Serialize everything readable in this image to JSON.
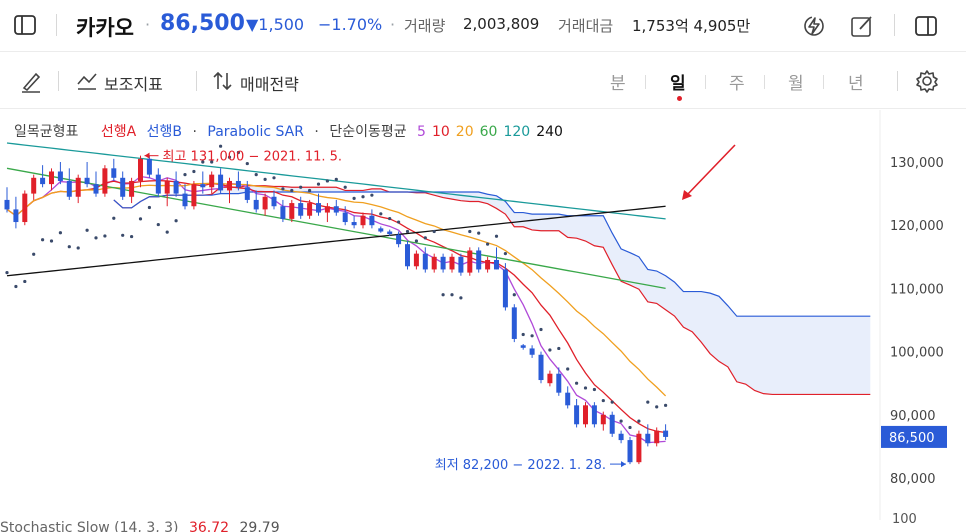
{
  "header": {
    "stock_name": "카카오",
    "sep": "·",
    "price": "86,500",
    "change": "▼1,500",
    "change_pct": "−1.70%",
    "volume_label": "거래량",
    "volume_value": "2,003,809",
    "amount_label": "거래대금",
    "amount_value": "1,753억 4,905만"
  },
  "toolbar": {
    "indicator_label": "보조지표",
    "strategy_label": "매매전략",
    "periods": [
      "분",
      "일",
      "주",
      "월",
      "년"
    ],
    "active_period": "일"
  },
  "legend": {
    "ichimoku": "일목균형표",
    "leading_a": "선행A",
    "leading_b": "선행B",
    "sep": "·",
    "sar": "Parabolic SAR",
    "ma_label": "단순이동평균",
    "ma_periods": [
      {
        "label": "5",
        "color": "#b04ad8"
      },
      {
        "label": "10",
        "color": "#e0202a"
      },
      {
        "label": "20",
        "color": "#f0a020"
      },
      {
        "label": "60",
        "color": "#3aa84a"
      },
      {
        "label": "120",
        "color": "#1a9a9a"
      },
      {
        "label": "240",
        "color": "#111111"
      }
    ]
  },
  "lower_panel": {
    "title": "Stochastic Slow (14, 3, 3)",
    "value1": "36.72",
    "value2": "29.79",
    "axis_top": "100"
  },
  "colors": {
    "up": "#e0202a",
    "down": "#2a5bd7",
    "cloud": "#e8eefb",
    "sar": "#3a4a6a"
  },
  "chart_data": {
    "type": "candlestick",
    "y_ticks": [
      "130,000",
      "120,000",
      "110,000",
      "100,000",
      "90,000",
      "80,000"
    ],
    "y_tick_values": [
      130000,
      120000,
      110000,
      100000,
      90000,
      80000
    ],
    "ylim": [
      76000,
      140000
    ],
    "current_price_label": "86,500",
    "current_price": 86500,
    "annotations": {
      "high": "최고 131,000 − 2021. 11. 5.",
      "low": "최저 82,200 − 2022. 1. 28."
    },
    "candles": [
      [
        124000,
        126000,
        122000,
        122500
      ],
      [
        122500,
        124500,
        119500,
        120500
      ],
      [
        120500,
        125500,
        120000,
        125000
      ],
      [
        125000,
        128000,
        124000,
        127500
      ],
      [
        127500,
        129500,
        126000,
        126500
      ],
      [
        126500,
        129000,
        125500,
        128500
      ],
      [
        128500,
        130000,
        126500,
        127000
      ],
      [
        127000,
        129000,
        124000,
        124500
      ],
      [
        124500,
        128000,
        123500,
        127500
      ],
      [
        127500,
        130000,
        126000,
        126500
      ],
      [
        126500,
        128500,
        124500,
        125000
      ],
      [
        125000,
        129500,
        124500,
        129000
      ],
      [
        129000,
        130500,
        127000,
        127500
      ],
      [
        127500,
        128500,
        124000,
        124500
      ],
      [
        124500,
        127500,
        123500,
        127000
      ],
      [
        127000,
        131000,
        126000,
        130500
      ],
      [
        130500,
        131000,
        127500,
        128000
      ],
      [
        128000,
        129000,
        124500,
        125000
      ],
      [
        125000,
        127500,
        123000,
        127000
      ],
      [
        127000,
        128500,
        124500,
        125000
      ],
      [
        125000,
        126500,
        122500,
        123000
      ],
      [
        123000,
        127000,
        122500,
        126500
      ],
      [
        126500,
        128500,
        125000,
        126000
      ],
      [
        126000,
        128500,
        125000,
        128000
      ],
      [
        128000,
        129000,
        125000,
        125500
      ],
      [
        125500,
        127500,
        123500,
        127000
      ],
      [
        127000,
        128500,
        125500,
        126000
      ],
      [
        126000,
        127000,
        123500,
        124000
      ],
      [
        124000,
        125500,
        122000,
        122500
      ],
      [
        122500,
        125000,
        121500,
        124500
      ],
      [
        124500,
        125500,
        122500,
        123000
      ],
      [
        123000,
        124000,
        120500,
        121000
      ],
      [
        121000,
        124000,
        120500,
        123500
      ],
      [
        123500,
        124500,
        121000,
        121500
      ],
      [
        121500,
        124000,
        121000,
        123500
      ],
      [
        123500,
        125000,
        121500,
        122000
      ],
      [
        122000,
        123500,
        120500,
        123000
      ],
      [
        123000,
        124000,
        121500,
        122000
      ],
      [
        122000,
        123000,
        120000,
        120500
      ],
      [
        120500,
        121500,
        119500,
        120000
      ],
      [
        120000,
        122000,
        119500,
        121500
      ],
      [
        121500,
        122500,
        119500,
        120000
      ],
      [
        119500,
        119800,
        118800,
        119000
      ],
      [
        119000,
        119300,
        118300,
        118600
      ],
      [
        118500,
        119000,
        116500,
        117000
      ],
      [
        117000,
        117500,
        113000,
        113500
      ],
      [
        113500,
        116000,
        113000,
        115500
      ],
      [
        115500,
        116500,
        112500,
        113000
      ],
      [
        113000,
        115500,
        112500,
        115000
      ],
      [
        115000,
        115500,
        112500,
        113000
      ],
      [
        113000,
        115500,
        112500,
        115000
      ],
      [
        115000,
        115500,
        112000,
        112500
      ],
      [
        112500,
        116500,
        112000,
        116000
      ],
      [
        116000,
        116500,
        112500,
        113000
      ],
      [
        113000,
        115000,
        112500,
        114500
      ],
      [
        114500,
        116500,
        113000,
        113000
      ],
      [
        113000,
        114000,
        106500,
        107000
      ],
      [
        107000,
        107500,
        101500,
        102000
      ],
      [
        101000,
        101200,
        100300,
        100600
      ],
      [
        100500,
        101000,
        99000,
        99500
      ],
      [
        99500,
        100000,
        95000,
        95500
      ],
      [
        95000,
        97000,
        94500,
        96500
      ],
      [
        96500,
        97500,
        93000,
        93500
      ],
      [
        93500,
        94500,
        91000,
        91500
      ],
      [
        91500,
        92500,
        88000,
        88500
      ],
      [
        88500,
        92000,
        88000,
        91500
      ],
      [
        91500,
        92000,
        88000,
        88500
      ],
      [
        88500,
        90500,
        87500,
        90000
      ],
      [
        90000,
        90500,
        86500,
        87000
      ],
      [
        87000,
        87500,
        85500,
        86000
      ],
      [
        86000,
        86500,
        82200,
        82500
      ],
      [
        82500,
        87500,
        82200,
        87000
      ],
      [
        87000,
        88500,
        85000,
        85500
      ],
      [
        85500,
        88000,
        85000,
        87500
      ],
      [
        87500,
        88500,
        86000,
        86500
      ]
    ]
  }
}
